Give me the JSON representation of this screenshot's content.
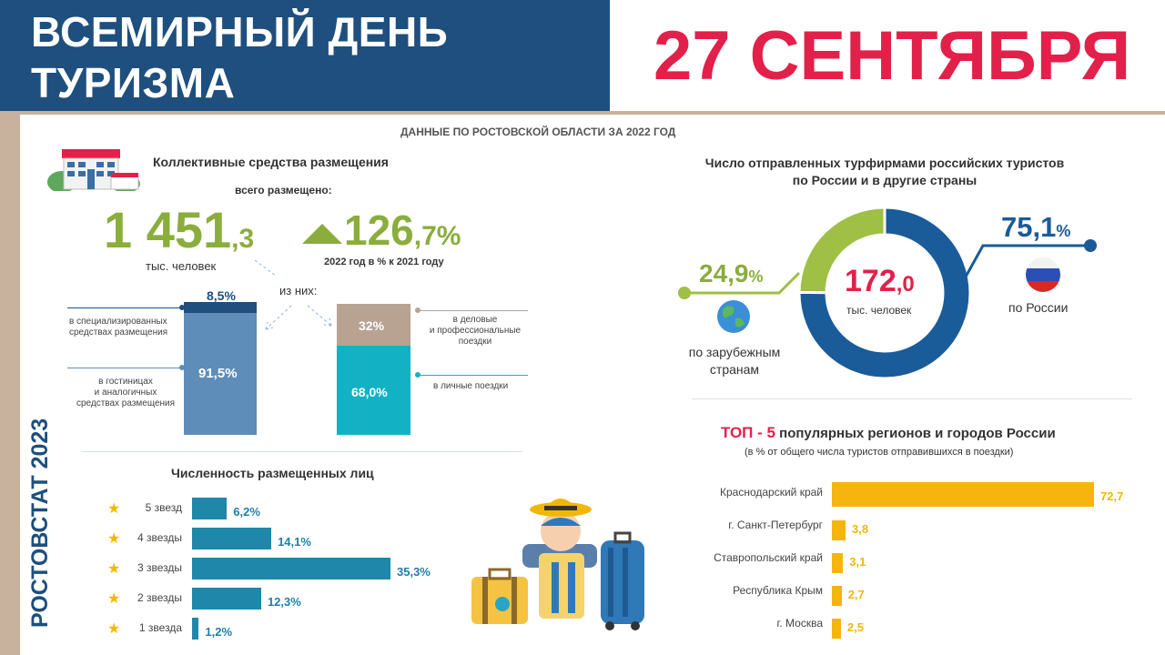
{
  "header": {
    "title_line1": "ВСЕМИРНЫЙ ДЕНЬ",
    "title_line2": "ТУРИЗМА",
    "date": "27 СЕНТЯБРЯ"
  },
  "subtitle": "ДАННЫЕ ПО РОСТОВСКОЙ ОБЛАСТИ ЗА 2022 ГОД",
  "side_label": "РОСТОВСТАТ 2023",
  "accommodation": {
    "title": "Коллективные средства размещения",
    "total_label": "всего размещено:",
    "total_int": "1 451",
    "total_dec": ",3",
    "total_unit": "тыс. человек",
    "growth_int": "126",
    "growth_dec": ",7%",
    "growth_note": "2022 год в % к 2021 году",
    "of_them": "из них:",
    "bar1": {
      "top_value": 8.5,
      "top_label": "8,5%",
      "bottom_value": 91.5,
      "bottom_label": "91,5%",
      "legend_top": [
        "в специализированных",
        "средствах  размещения"
      ],
      "legend_bottom": [
        "в гостиницах",
        "и аналогичных",
        "средствах размещения"
      ],
      "colors": {
        "top": "#1e4f7e",
        "bottom": "#5d8db8"
      }
    },
    "bar2": {
      "top_value": 32,
      "top_label": "32%",
      "bottom_value": 68.0,
      "bottom_label": "68,0%",
      "legend_top": [
        "в деловые",
        "и профессиональные",
        "поездки"
      ],
      "legend_bottom": [
        "в личные поездки"
      ],
      "colors": {
        "top": "#b8a393",
        "bottom": "#12b2c4"
      }
    }
  },
  "chart_data": [
    {
      "type": "bar",
      "title": "Численность размещенных лиц",
      "categories": [
        "5 звезд",
        "4 звезды",
        "3 звезды",
        "2 звезды",
        "1 звезда"
      ],
      "values": [
        6.2,
        14.1,
        35.3,
        12.3,
        1.2
      ],
      "value_labels": [
        "6,2%",
        "14,1%",
        "35,3%",
        "12,3%",
        "1,2%"
      ],
      "color": "#1e87aa",
      "orientation": "horizontal",
      "icon": "star-icon"
    },
    {
      "type": "pie",
      "title_line1": "Число отправленных турфирмами российских туристов",
      "title_line2": "по России и в другие страны",
      "center_value_int": "172",
      "center_value_dec": ",0",
      "center_unit": "тыс. человек",
      "slices": [
        {
          "label": "по России",
          "value": 75.1,
          "value_int": "75,1",
          "pct": "%",
          "color": "#1a5b9a",
          "icon": "russia-flag-icon"
        },
        {
          "label_line1": "по зарубежным",
          "label_line2": "странам",
          "value": 24.9,
          "value_int": "24,9",
          "pct": "%",
          "color": "#9fbf45",
          "icon": "globe-icon"
        }
      ]
    },
    {
      "type": "bar",
      "title_top": "ТОП - 5",
      "title_rest": " популярных регионов и городов России",
      "subtitle": "(в % от общего числа туристов  отправившихся  в поездки)",
      "categories": [
        "Краснодарский край",
        "г. Санкт-Петербург",
        "Ставропольский  край",
        "Республика Крым",
        "г. Москва"
      ],
      "values": [
        72.7,
        3.8,
        3.1,
        2.7,
        2.5
      ],
      "value_labels": [
        "72,7",
        "3,8",
        "3,1",
        "2,7",
        "2,5"
      ],
      "color": "#f5b50c",
      "orientation": "horizontal"
    }
  ],
  "colors": {
    "navy": "#1e4f7e",
    "accent_red": "#e3204a",
    "green": "#8aad3c",
    "beige": "#c8b29d"
  }
}
